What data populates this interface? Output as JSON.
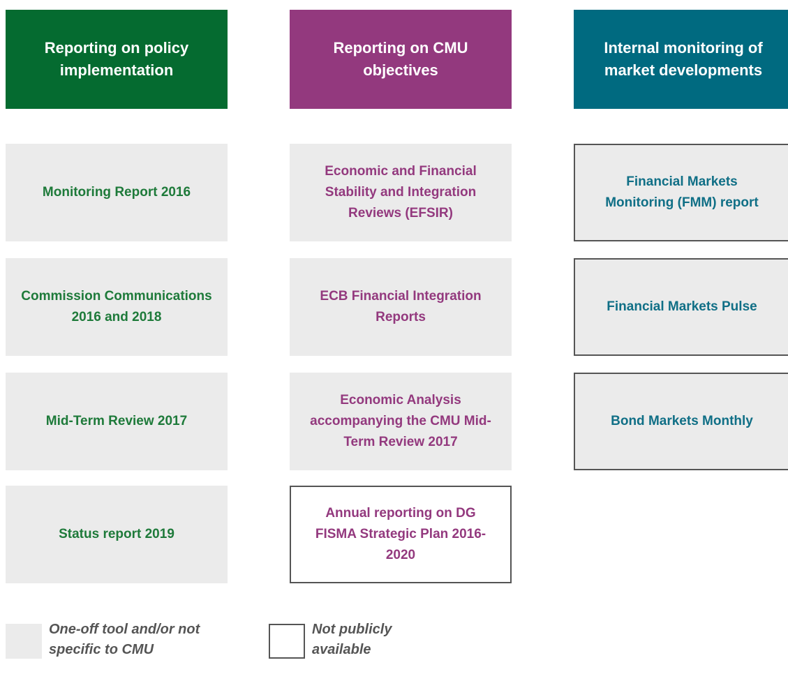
{
  "columns": [
    {
      "header": "Reporting on policy implementation",
      "items": [
        "Monitoring Report 2016",
        "Commission Communications 2016 and 2018",
        "Mid-Term Review 2017",
        "Status report 2019"
      ]
    },
    {
      "header": "Reporting on CMU objectives",
      "items": [
        "Economic and Financial Stability and Integration Reviews (EFSIR)",
        "ECB Financial Integration Reports",
        "Economic Analysis accompanying the CMU Mid-Term Review 2017",
        "Annual reporting on DG FISMA Strategic Plan 2016-2020"
      ]
    },
    {
      "header": "Internal monitoring of market developments",
      "items": [
        "Financial Markets Monitoring (FMM) report",
        "Financial Markets Pulse",
        "Bond Markets Monthly"
      ]
    }
  ],
  "legend": [
    "One-off tool and/or not specific to CMU",
    "Not publicly available"
  ]
}
